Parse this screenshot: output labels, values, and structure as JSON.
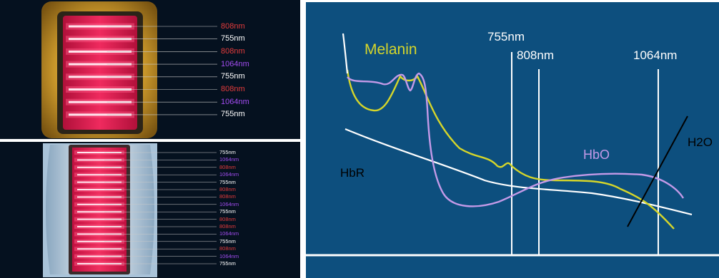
{
  "top_device": {
    "bands": [
      {
        "label": "808nm",
        "color": "#e23b3b"
      },
      {
        "label": "755nm",
        "color": "#ffffff"
      },
      {
        "label": "808nm",
        "color": "#e23b3b"
      },
      {
        "label": "1064nm",
        "color": "#a24cf0"
      },
      {
        "label": "755nm",
        "color": "#ffffff"
      },
      {
        "label": "808nm",
        "color": "#e23b3b"
      },
      {
        "label": "1064nm",
        "color": "#a24cf0"
      },
      {
        "label": "755nm",
        "color": "#ffffff"
      }
    ]
  },
  "bottom_device": {
    "bands": [
      {
        "label": "755nm",
        "color": "#ffffff"
      },
      {
        "label": "1064nm",
        "color": "#a24cf0"
      },
      {
        "label": "808nm",
        "color": "#e23b3b"
      },
      {
        "label": "1064nm",
        "color": "#a24cf0"
      },
      {
        "label": "755nm",
        "color": "#ffffff"
      },
      {
        "label": "808nm",
        "color": "#e23b3b"
      },
      {
        "label": "808nm",
        "color": "#e23b3b"
      },
      {
        "label": "1064nm",
        "color": "#a24cf0"
      },
      {
        "label": "755nm",
        "color": "#ffffff"
      },
      {
        "label": "808nm",
        "color": "#e23b3b"
      },
      {
        "label": "808nm",
        "color": "#e23b3b"
      },
      {
        "label": "1064nm",
        "color": "#a24cf0"
      },
      {
        "label": "755nm",
        "color": "#ffffff"
      },
      {
        "label": "808nm",
        "color": "#e23b3b"
      },
      {
        "label": "1064nm",
        "color": "#a24cf0"
      },
      {
        "label": "755nm",
        "color": "#ffffff"
      }
    ]
  },
  "spectrum": {
    "wavelength_755": "755nm",
    "wavelength_808": "808nm",
    "wavelength_1064": "1064nm",
    "melanin": "Melanin",
    "hbr": "HbR",
    "hbo": "HbO",
    "h2o": "H2O"
  },
  "colors": {
    "chart_bg": "#0d4f7e",
    "melanin": "#d6d62a",
    "hbo": "#c49ae8",
    "hbr": "#ffffff",
    "laser_red": "#e8194f"
  }
}
